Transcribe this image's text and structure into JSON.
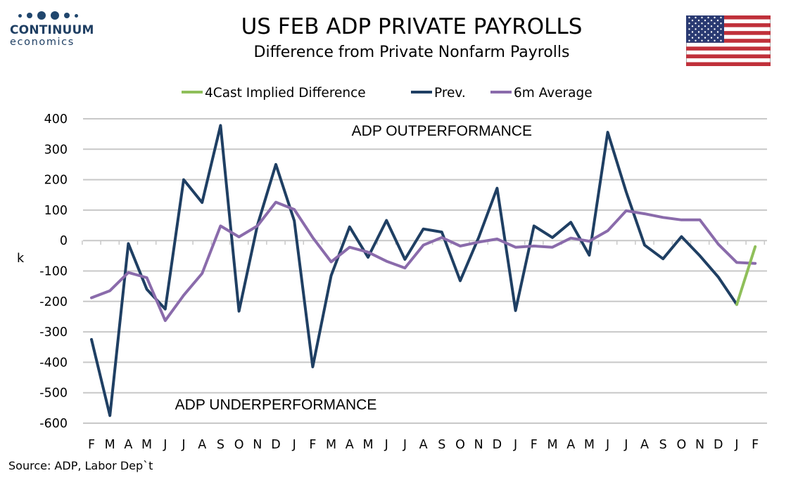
{
  "header": {
    "logo_brand": "CONTINUUM",
    "logo_sub": "economics",
    "title": "US FEB ADP PRIVATE PAYROLLS",
    "subtitle": "Difference from Private Nonfarm Payrolls",
    "flag_icon": "us-flag-icon"
  },
  "source": "Source: ADP, Labor Dep`t",
  "colors": {
    "prev": "#1f3f63",
    "avg": "#8a6bab",
    "forecast": "#8fbf5a",
    "grid": "#c8c8c8",
    "logo": "#1f3f63"
  },
  "chart_data": {
    "type": "line",
    "title": "US FEB ADP PRIVATE PAYROLLS",
    "subtitle": "Difference from Private Nonfarm Payrolls",
    "ylabel": "k",
    "xlabel": "",
    "ylim": [
      -600,
      400
    ],
    "yticks": [
      400,
      300,
      200,
      100,
      0,
      -100,
      -200,
      -300,
      -400,
      -500,
      -600
    ],
    "grid": true,
    "legend_position": "top",
    "categories": [
      "F",
      "M",
      "A",
      "M",
      "J",
      "J",
      "A",
      "S",
      "O",
      "N",
      "D",
      "J",
      "F",
      "M",
      "A",
      "M",
      "J",
      "J",
      "A",
      "S",
      "O",
      "N",
      "D",
      "J",
      "F",
      "M",
      "A",
      "M",
      "J",
      "J",
      "A",
      "S",
      "O",
      "N",
      "D",
      "J",
      "F"
    ],
    "annotations": [
      {
        "text": "ADP OUTPERFORMANCE",
        "at_index": 19,
        "y": 345
      },
      {
        "text": "ADP UNDERPERFORMANCE",
        "at_index": 10,
        "y": -555
      }
    ],
    "series": [
      {
        "name": "4Cast Implied Difference",
        "color": "#8fbf5a",
        "values": [
          null,
          null,
          null,
          null,
          null,
          null,
          null,
          null,
          null,
          null,
          null,
          null,
          null,
          null,
          null,
          null,
          null,
          null,
          null,
          null,
          null,
          null,
          null,
          null,
          null,
          null,
          null,
          null,
          null,
          null,
          null,
          null,
          null,
          null,
          null,
          -210,
          -20
        ]
      },
      {
        "name": "Prev.",
        "color": "#1f3f63",
        "values": [
          -325,
          -575,
          -10,
          -160,
          -225,
          200,
          125,
          378,
          -232,
          50,
          250,
          65,
          -415,
          -115,
          45,
          -55,
          66,
          -62,
          38,
          28,
          -132,
          10,
          172,
          -230,
          48,
          10,
          60,
          -48,
          356,
          160,
          -15,
          -60,
          13,
          -50,
          -120,
          -210,
          null
        ]
      },
      {
        "name": "6m Average",
        "color": "#8a6bab",
        "values": [
          -188,
          -165,
          -105,
          -122,
          -263,
          -180,
          -108,
          48,
          12,
          48,
          126,
          102,
          10,
          -70,
          -22,
          -38,
          -68,
          -90,
          -15,
          10,
          -18,
          -5,
          5,
          -22,
          -18,
          -22,
          8,
          -2,
          32,
          98,
          88,
          76,
          68,
          68,
          -12,
          -72,
          -75
        ]
      }
    ]
  }
}
